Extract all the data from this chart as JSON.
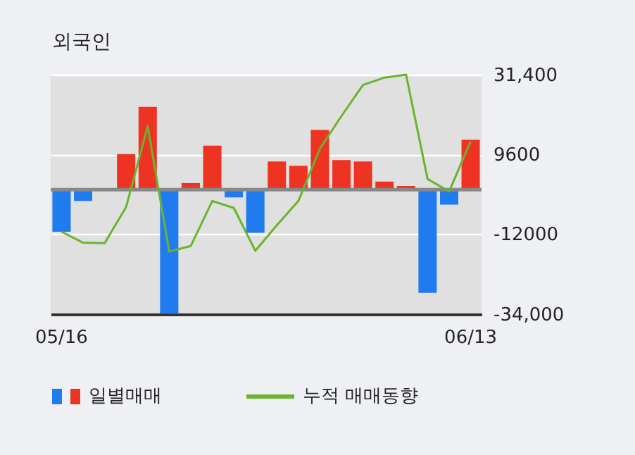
{
  "chart_data": {
    "type": "bar",
    "title": "외국인",
    "categories": [
      "05/16",
      null,
      null,
      null,
      null,
      null,
      null,
      null,
      null,
      null,
      null,
      null,
      null,
      null,
      null,
      null,
      null,
      null,
      null,
      "06/13"
    ],
    "series": [
      {
        "name": "일별매매",
        "colors": [
          "#1f7bee",
          "#1f7bee",
          "#ee3322",
          "#ee3322",
          "#ee3322",
          "#1f7bee",
          "#ee3322",
          "#ee3322",
          "#1f7bee",
          "#1f7bee",
          "#ee3322",
          "#ee3322",
          "#ee3322",
          "#ee3322",
          "#ee3322",
          "#ee3322",
          "#ee3322",
          "#1f7bee",
          "#1f7bee",
          "#ee3322"
        ],
        "values": [
          -11500,
          -3100,
          0,
          9700,
          22600,
          -33900,
          1800,
          12000,
          -2100,
          -11800,
          7700,
          6500,
          16300,
          8100,
          7700,
          2200,
          1000,
          -28200,
          -4100,
          13600
        ]
      },
      {
        "name": "누적 매매동향",
        "type": "line",
        "color": "#6ab42d",
        "values": [
          -11500,
          -14500,
          -14600,
          -4700,
          17300,
          -16900,
          -15400,
          -3100,
          -5000,
          -16700,
          -9700,
          -3100,
          11200,
          20100,
          28600,
          30600,
          31400,
          2900,
          -500,
          13200
        ]
      }
    ],
    "ylim": [
      -34000,
      31400
    ],
    "yticks": [
      {
        "value": -34000,
        "label": "-34,000"
      },
      {
        "value": -12000,
        "label": "-12000"
      },
      {
        "value": 9600,
        "label": "9600"
      },
      {
        "value": 31400,
        "label": "31,400"
      }
    ],
    "ref_lines": [
      {
        "axis": "y",
        "value": 0,
        "color": "#888888"
      }
    ],
    "grid": "y",
    "legend": "bottom"
  }
}
